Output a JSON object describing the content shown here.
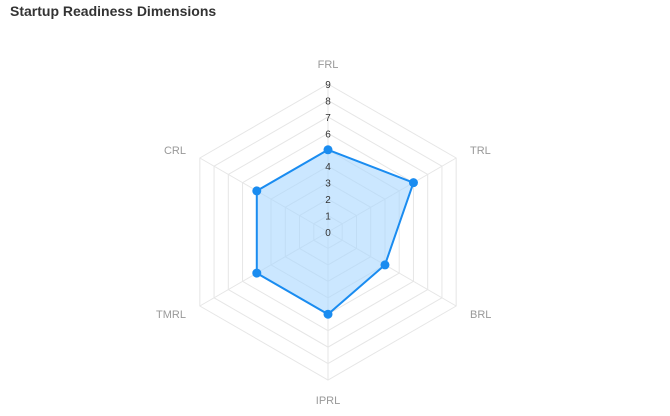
{
  "chart_data": {
    "type": "radar",
    "title": "Startup Readiness Dimensions",
    "axes": [
      "FRL",
      "TRL",
      "BRL",
      "IPRL",
      "TMRL",
      "CRL"
    ],
    "series": [
      {
        "values": [
          5,
          6,
          4,
          5,
          5,
          5
        ]
      }
    ],
    "rlim": [
      0,
      9
    ],
    "ticks": [
      0,
      1,
      2,
      3,
      4,
      5,
      6,
      7,
      8,
      9
    ],
    "grid": true,
    "legend": "none",
    "colors": {
      "line": "#1a8cf0",
      "fill": "#a9d7ff",
      "grid": "#e6e6e6"
    }
  }
}
